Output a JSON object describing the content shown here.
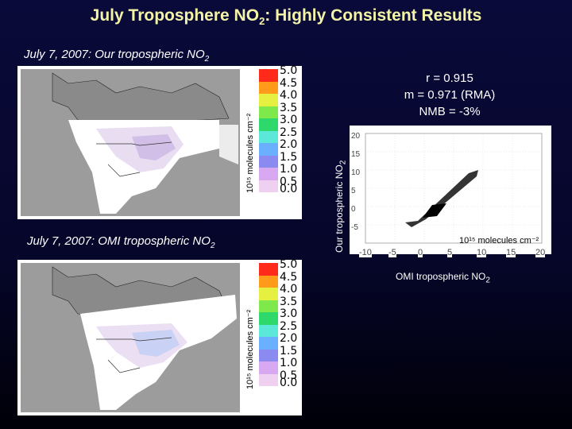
{
  "slide": {
    "title_main": "July Troposphere NO",
    "title_sub": "2",
    "title_tail": ": Highly Consistent Results"
  },
  "top_map": {
    "caption_main": "July 7, 2007: Our tropospheric NO",
    "caption_sub": "2",
    "colorbar_label": "10¹⁵ molecules cm⁻²",
    "ticks": [
      "5.0",
      "4.5",
      "4.0",
      "3.5",
      "3.0",
      "2.5",
      "2.0",
      "1.5",
      "1.0",
      "0.5",
      "0.0"
    ]
  },
  "bottom_map": {
    "caption_main": "July 7, 2007: OMI tropospheric NO",
    "caption_sub": "2",
    "colorbar_label": "10¹⁵ molecules cm⁻²",
    "ticks": [
      "5.0",
      "4.5",
      "4.0",
      "3.5",
      "3.0",
      "2.5",
      "2.0",
      "1.5",
      "1.0",
      "0.5",
      "0.0"
    ]
  },
  "colorbar_colors": [
    "#ff2a1a",
    "#ff9a1a",
    "#e6f040",
    "#7fe84a",
    "#2fd86a",
    "#5ce8d8",
    "#6ab0ff",
    "#8a8af0",
    "#d8a8f0",
    "#f0d0f0",
    "#ffffff"
  ],
  "stats": {
    "r": "r = 0.915",
    "m": "m = 0.971 (RMA)",
    "nmb": "NMB = -3%"
  },
  "scatter": {
    "y_label": "Our tropospheric NO",
    "y_label_sub": "2",
    "x_label": "OMI tropospheric NO",
    "x_label_sub": "2",
    "x_unit": "10¹⁵ molecules cm⁻²",
    "y_ticks": [
      "20",
      "15",
      "10",
      "5",
      "0",
      "-5"
    ],
    "x_ticks": [
      "-10",
      "-5",
      "0",
      "5",
      "10",
      "15",
      "20"
    ]
  }
}
